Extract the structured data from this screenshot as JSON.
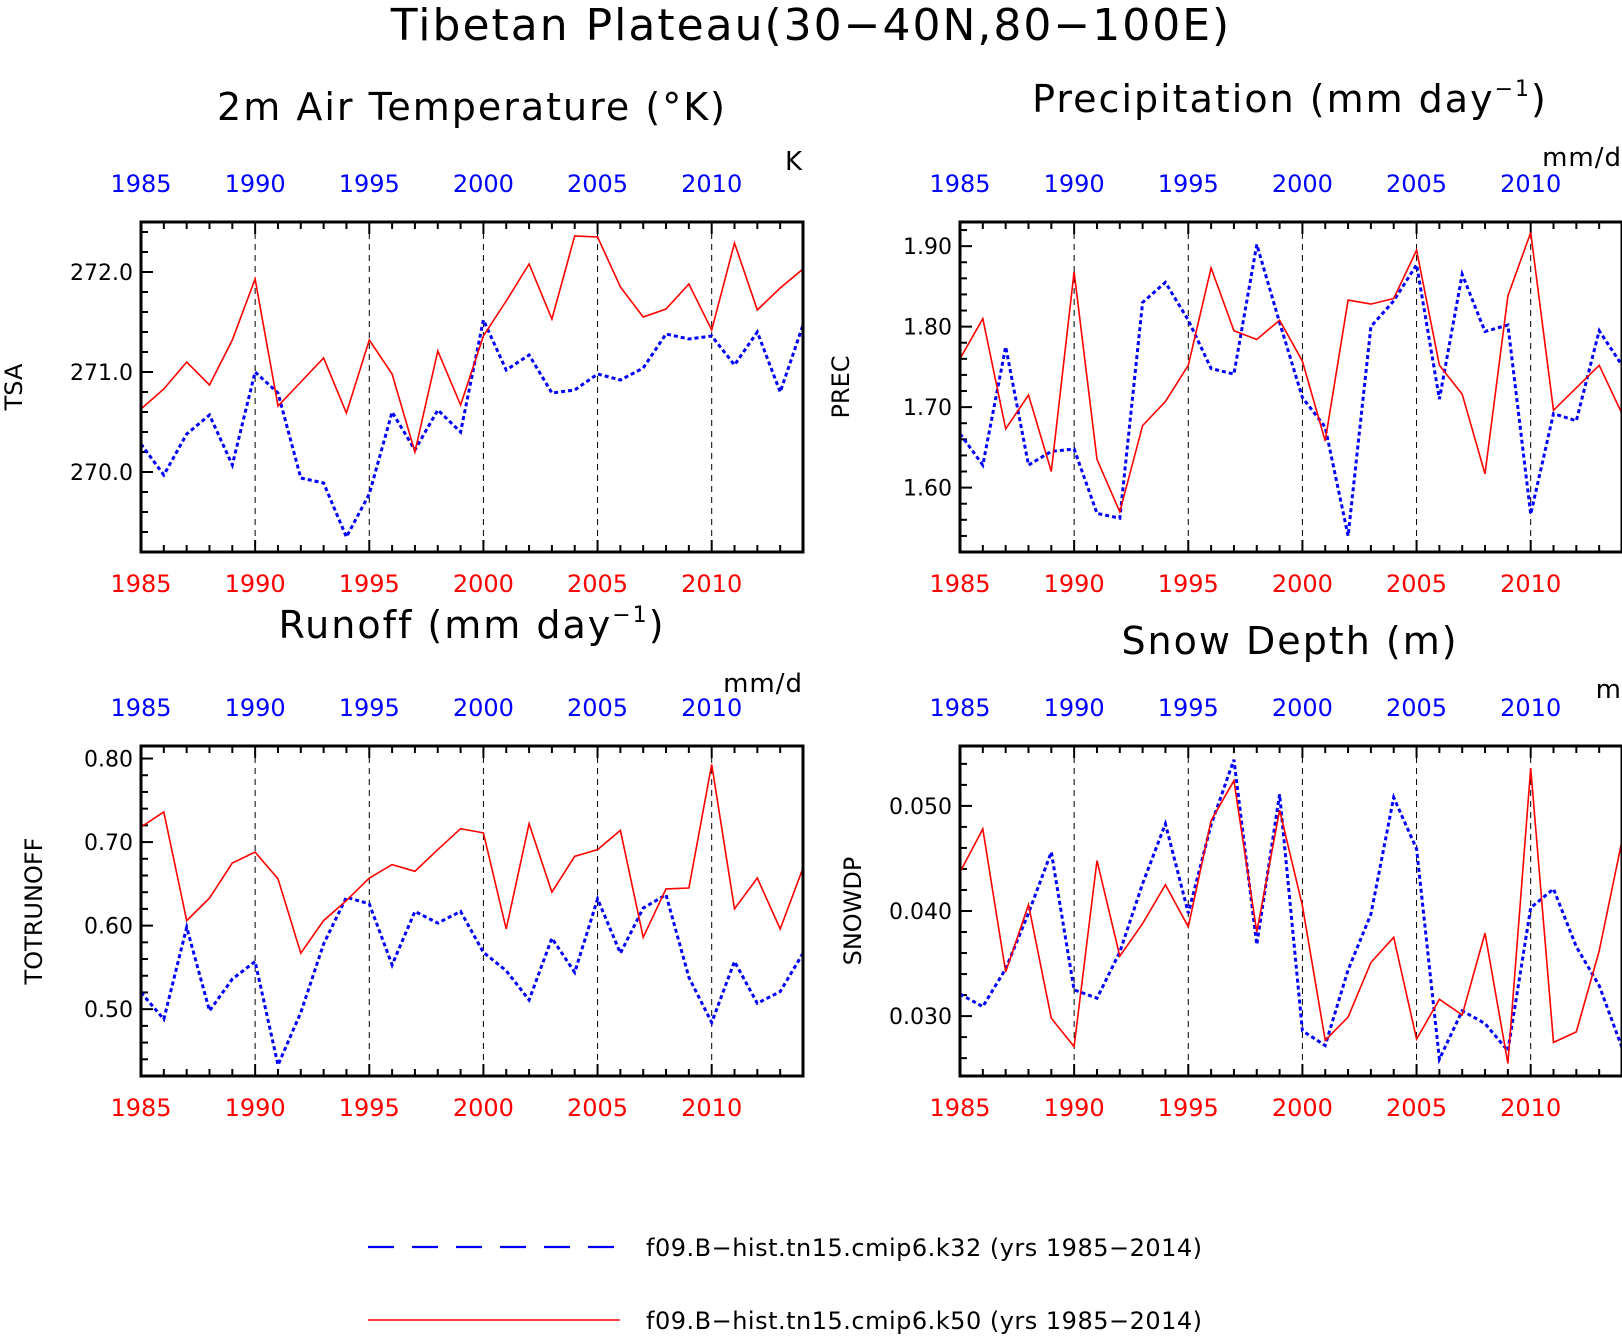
{
  "main_title": "Tibetan Plateau(30−40N,80−100E)",
  "colors": {
    "model_k32": "#0000ff",
    "model_k50": "#ff0000",
    "top_axis": "#0000ff",
    "bottom_axis": "#ff0000"
  },
  "legend": [
    {
      "label": "f09.B−hist.tn15.cmip6.k32 (yrs 1985−2014)",
      "color": "#0000ff",
      "style": "dashed"
    },
    {
      "label": "f09.B−hist.tn15.cmip6.k50 (yrs 1985−2014)",
      "color": "#ff0000",
      "style": "solid"
    }
  ],
  "chart_data": [
    {
      "type": "line",
      "title": "2m Air Temperature (°K)",
      "unit": "K",
      "ylabel": "TSA",
      "xlim": [
        1985,
        2014
      ],
      "ylim": [
        269.2,
        272.5
      ],
      "yticks": [
        270.0,
        271.0,
        272.0
      ],
      "yticklabels": [
        "270.0",
        "271.0",
        "272.0"
      ],
      "yminor": 0.2,
      "xticks": [
        1985,
        1990,
        1995,
        2000,
        2005,
        2010
      ],
      "x": [
        1985,
        1986,
        1987,
        1988,
        1989,
        1990,
        1991,
        1992,
        1993,
        1994,
        1995,
        1996,
        1997,
        1998,
        1999,
        2000,
        2001,
        2002,
        2003,
        2004,
        2005,
        2006,
        2007,
        2008,
        2009,
        2010,
        2011,
        2012,
        2013,
        2014
      ],
      "series": [
        {
          "name": "f09.B−hist.tn15.cmip6.k32 (yrs 1985−2014)",
          "color": "#0000ff",
          "style": "dashed",
          "values": [
            270.28,
            269.97,
            270.38,
            270.57,
            270.07,
            271.0,
            270.79,
            269.94,
            269.89,
            269.35,
            269.78,
            270.6,
            270.22,
            270.62,
            270.4,
            271.52,
            271.02,
            271.17,
            270.79,
            270.82,
            270.98,
            270.92,
            271.04,
            271.38,
            271.33,
            271.36,
            271.07,
            271.4,
            270.8,
            271.47
          ]
        },
        {
          "name": "f09.B−hist.tn15.cmip6.k50 (yrs 1985−2014)",
          "color": "#ff0000",
          "style": "solid",
          "values": [
            270.63,
            270.83,
            271.1,
            270.87,
            271.32,
            271.93,
            270.66,
            270.9,
            271.14,
            270.59,
            271.32,
            270.98,
            270.2,
            271.21,
            270.67,
            271.36,
            271.71,
            272.08,
            271.53,
            272.36,
            272.35,
            271.85,
            271.55,
            271.63,
            271.88,
            271.42,
            272.29,
            271.62,
            271.84,
            272.03
          ]
        }
      ]
    },
    {
      "type": "line",
      "title": "Precipitation (mm day",
      "title_sup": "−1",
      "title_end": ")",
      "unit": "mm/d",
      "ylabel": "PREC",
      "xlim": [
        1985,
        2014
      ],
      "ylim": [
        1.52,
        1.93
      ],
      "yticks": [
        1.6,
        1.7,
        1.8,
        1.9
      ],
      "yticklabels": [
        "1.60",
        "1.70",
        "1.80",
        "1.90"
      ],
      "yminor": 0.02,
      "xticks": [
        1985,
        1990,
        1995,
        2000,
        2005,
        2010
      ],
      "x": [
        1985,
        1986,
        1987,
        1988,
        1989,
        1990,
        1991,
        1992,
        1993,
        1994,
        1995,
        1996,
        1997,
        1998,
        1999,
        2000,
        2001,
        2002,
        2003,
        2004,
        2005,
        2006,
        2007,
        2008,
        2009,
        2010,
        2011,
        2012,
        2013,
        2014
      ],
      "series": [
        {
          "name": "f09.B−hist.tn15.cmip6.k32 (yrs 1985−2014)",
          "color": "#0000ff",
          "style": "dashed",
          "values": [
            1.667,
            1.628,
            1.775,
            1.628,
            1.645,
            1.648,
            1.568,
            1.562,
            1.83,
            1.855,
            1.808,
            1.748,
            1.741,
            1.902,
            1.805,
            1.712,
            1.675,
            1.54,
            1.8,
            1.832,
            1.877,
            1.71,
            1.865,
            1.794,
            1.802,
            1.567,
            1.692,
            1.683,
            1.795,
            1.752
          ]
        },
        {
          "name": "f09.B−hist.tn15.cmip6.k50 (yrs 1985−2014)",
          "color": "#ff0000",
          "style": "solid",
          "values": [
            1.76,
            1.81,
            1.673,
            1.715,
            1.62,
            1.868,
            1.635,
            1.57,
            1.677,
            1.707,
            1.752,
            1.873,
            1.795,
            1.784,
            1.808,
            1.757,
            1.658,
            1.833,
            1.828,
            1.835,
            1.895,
            1.752,
            1.716,
            1.617,
            1.838,
            1.917,
            1.696,
            1.724,
            1.752,
            1.692
          ]
        }
      ]
    },
    {
      "type": "line",
      "title": "Runoff (mm day",
      "title_sup": "−1",
      "title_end": ")",
      "unit": "mm/d",
      "ylabel": "TOTRUNOFF",
      "xlim": [
        1985,
        2014
      ],
      "ylim": [
        0.42,
        0.815
      ],
      "yticks": [
        0.5,
        0.6,
        0.7,
        0.8
      ],
      "yticklabels": [
        "0.50",
        "0.60",
        "0.70",
        "0.80"
      ],
      "yminor": 0.02,
      "xticks": [
        1985,
        1990,
        1995,
        2000,
        2005,
        2010
      ],
      "x": [
        1985,
        1986,
        1987,
        1988,
        1989,
        1990,
        1991,
        1992,
        1993,
        1994,
        1995,
        1996,
        1997,
        1998,
        1999,
        2000,
        2001,
        2002,
        2003,
        2004,
        2005,
        2006,
        2007,
        2008,
        2009,
        2010,
        2011,
        2012,
        2013,
        2014
      ],
      "series": [
        {
          "name": "f09.B−hist.tn15.cmip6.k32 (yrs 1985−2014)",
          "color": "#0000ff",
          "style": "dashed",
          "values": [
            0.52,
            0.488,
            0.598,
            0.498,
            0.536,
            0.557,
            0.433,
            0.496,
            0.578,
            0.634,
            0.626,
            0.553,
            0.617,
            0.603,
            0.617,
            0.568,
            0.546,
            0.511,
            0.585,
            0.544,
            0.632,
            0.567,
            0.621,
            0.637,
            0.538,
            0.484,
            0.557,
            0.507,
            0.521,
            0.567
          ]
        },
        {
          "name": "f09.B−hist.tn15.cmip6.k50 (yrs 1985−2014)",
          "color": "#ff0000",
          "style": "solid",
          "values": [
            0.718,
            0.736,
            0.606,
            0.633,
            0.675,
            0.688,
            0.656,
            0.567,
            0.606,
            0.63,
            0.657,
            0.673,
            0.665,
            0.691,
            0.716,
            0.711,
            0.596,
            0.722,
            0.64,
            0.683,
            0.691,
            0.714,
            0.586,
            0.644,
            0.645,
            0.793,
            0.62,
            0.657,
            0.596,
            0.669
          ]
        }
      ]
    },
    {
      "type": "line",
      "title": "Snow Depth (m)",
      "unit": "m",
      "ylabel": "SNOWDP",
      "xlim": [
        1985,
        2014
      ],
      "ylim": [
        0.0243,
        0.0557
      ],
      "yticks": [
        0.03,
        0.04,
        0.05
      ],
      "yticklabels": [
        "0.030",
        "0.040",
        "0.050"
      ],
      "yminor": 0.002,
      "xticks": [
        1985,
        1990,
        1995,
        2000,
        2005,
        2010
      ],
      "x": [
        1985,
        1986,
        1987,
        1988,
        1989,
        1990,
        1991,
        1992,
        1993,
        1994,
        1995,
        1996,
        1997,
        1998,
        1999,
        2000,
        2001,
        2002,
        2003,
        2004,
        2005,
        2006,
        2007,
        2008,
        2009,
        2010,
        2011,
        2012,
        2013,
        2014
      ],
      "series": [
        {
          "name": "f09.B−hist.tn15.cmip6.k32 (yrs 1985−2014)",
          "color": "#0000ff",
          "style": "dashed",
          "values": [
            0.0321,
            0.0309,
            0.0345,
            0.0398,
            0.0456,
            0.0325,
            0.0317,
            0.0361,
            0.0426,
            0.0483,
            0.0398,
            0.0482,
            0.0544,
            0.0368,
            0.0511,
            0.0286,
            0.0272,
            0.0344,
            0.0397,
            0.0508,
            0.0459,
            0.0259,
            0.0305,
            0.0293,
            0.0267,
            0.0403,
            0.0421,
            0.0366,
            0.0329,
            0.027
          ]
        },
        {
          "name": "f09.B−hist.tn15.cmip6.k50 (yrs 1985−2014)",
          "color": "#ff0000",
          "style": "solid",
          "values": [
            0.0437,
            0.0478,
            0.0342,
            0.0406,
            0.0298,
            0.0271,
            0.0448,
            0.0357,
            0.0388,
            0.0425,
            0.0385,
            0.0486,
            0.0524,
            0.038,
            0.0496,
            0.0405,
            0.0277,
            0.0299,
            0.0351,
            0.0375,
            0.0278,
            0.0316,
            0.0301,
            0.0379,
            0.0255,
            0.0536,
            0.0275,
            0.0285,
            0.0362,
            0.0467
          ]
        }
      ]
    }
  ]
}
